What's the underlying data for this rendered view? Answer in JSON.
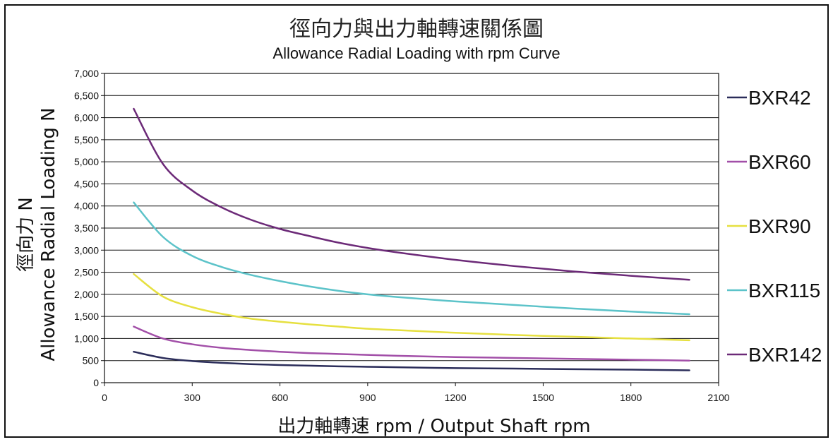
{
  "chart_data": {
    "type": "line",
    "title": "徑向力與出力軸轉速關係圖",
    "subtitle": "Allowance Radial Loading with rpm Curve",
    "xlabel": "出力軸轉速 rpm / Output Shaft rpm",
    "ylabel_zh": "徑向力 N",
    "ylabel_en": "Allowance Radial Loading N",
    "xlim": [
      0,
      2100
    ],
    "ylim": [
      0,
      7000
    ],
    "x_ticks": [
      0,
      300,
      600,
      900,
      1200,
      1500,
      1800,
      2100
    ],
    "x_tick_labels": [
      "0",
      "300",
      "600",
      "900",
      "1200",
      "1500",
      "1800",
      "2100"
    ],
    "y_ticks": [
      0,
      500,
      1000,
      1500,
      2000,
      2500,
      3000,
      3500,
      4000,
      4500,
      5000,
      5500,
      6000,
      6500,
      7000
    ],
    "y_tick_labels": [
      "0",
      "500",
      "1,000",
      "1,500",
      "2,000",
      "2,500",
      "3,000",
      "3,500",
      "4,000",
      "4,500",
      "5,000",
      "5,500",
      "6,000",
      "6,500",
      "7,000"
    ],
    "grid": "horizontal",
    "legend_position": "right",
    "x": [
      100,
      200,
      300,
      400,
      500,
      600,
      700,
      800,
      900,
      1000,
      1200,
      1400,
      1600,
      1800,
      2000
    ],
    "series": [
      {
        "name": "BXR42",
        "color": "#2b2d5a",
        "values": [
          700,
          560,
          490,
          450,
          420,
          400,
          385,
          370,
          360,
          350,
          330,
          320,
          305,
          295,
          280
        ]
      },
      {
        "name": "BXR60",
        "color": "#a24fa8",
        "values": [
          1270,
          1000,
          870,
          790,
          740,
          700,
          670,
          650,
          630,
          610,
          580,
          560,
          540,
          520,
          500
        ]
      },
      {
        "name": "BXR90",
        "color": "#e6e040",
        "values": [
          2460,
          1950,
          1710,
          1560,
          1450,
          1380,
          1320,
          1270,
          1220,
          1190,
          1130,
          1080,
          1040,
          1000,
          960
        ]
      },
      {
        "name": "BXR115",
        "color": "#5cc3c9",
        "values": [
          4080,
          3300,
          2870,
          2620,
          2440,
          2300,
          2180,
          2080,
          2000,
          1940,
          1840,
          1760,
          1680,
          1610,
          1550
        ]
      },
      {
        "name": "BXR142",
        "color": "#6c2a78",
        "values": [
          6200,
          4950,
          4350,
          3970,
          3690,
          3480,
          3320,
          3170,
          3050,
          2950,
          2780,
          2640,
          2520,
          2420,
          2330
        ]
      }
    ]
  }
}
